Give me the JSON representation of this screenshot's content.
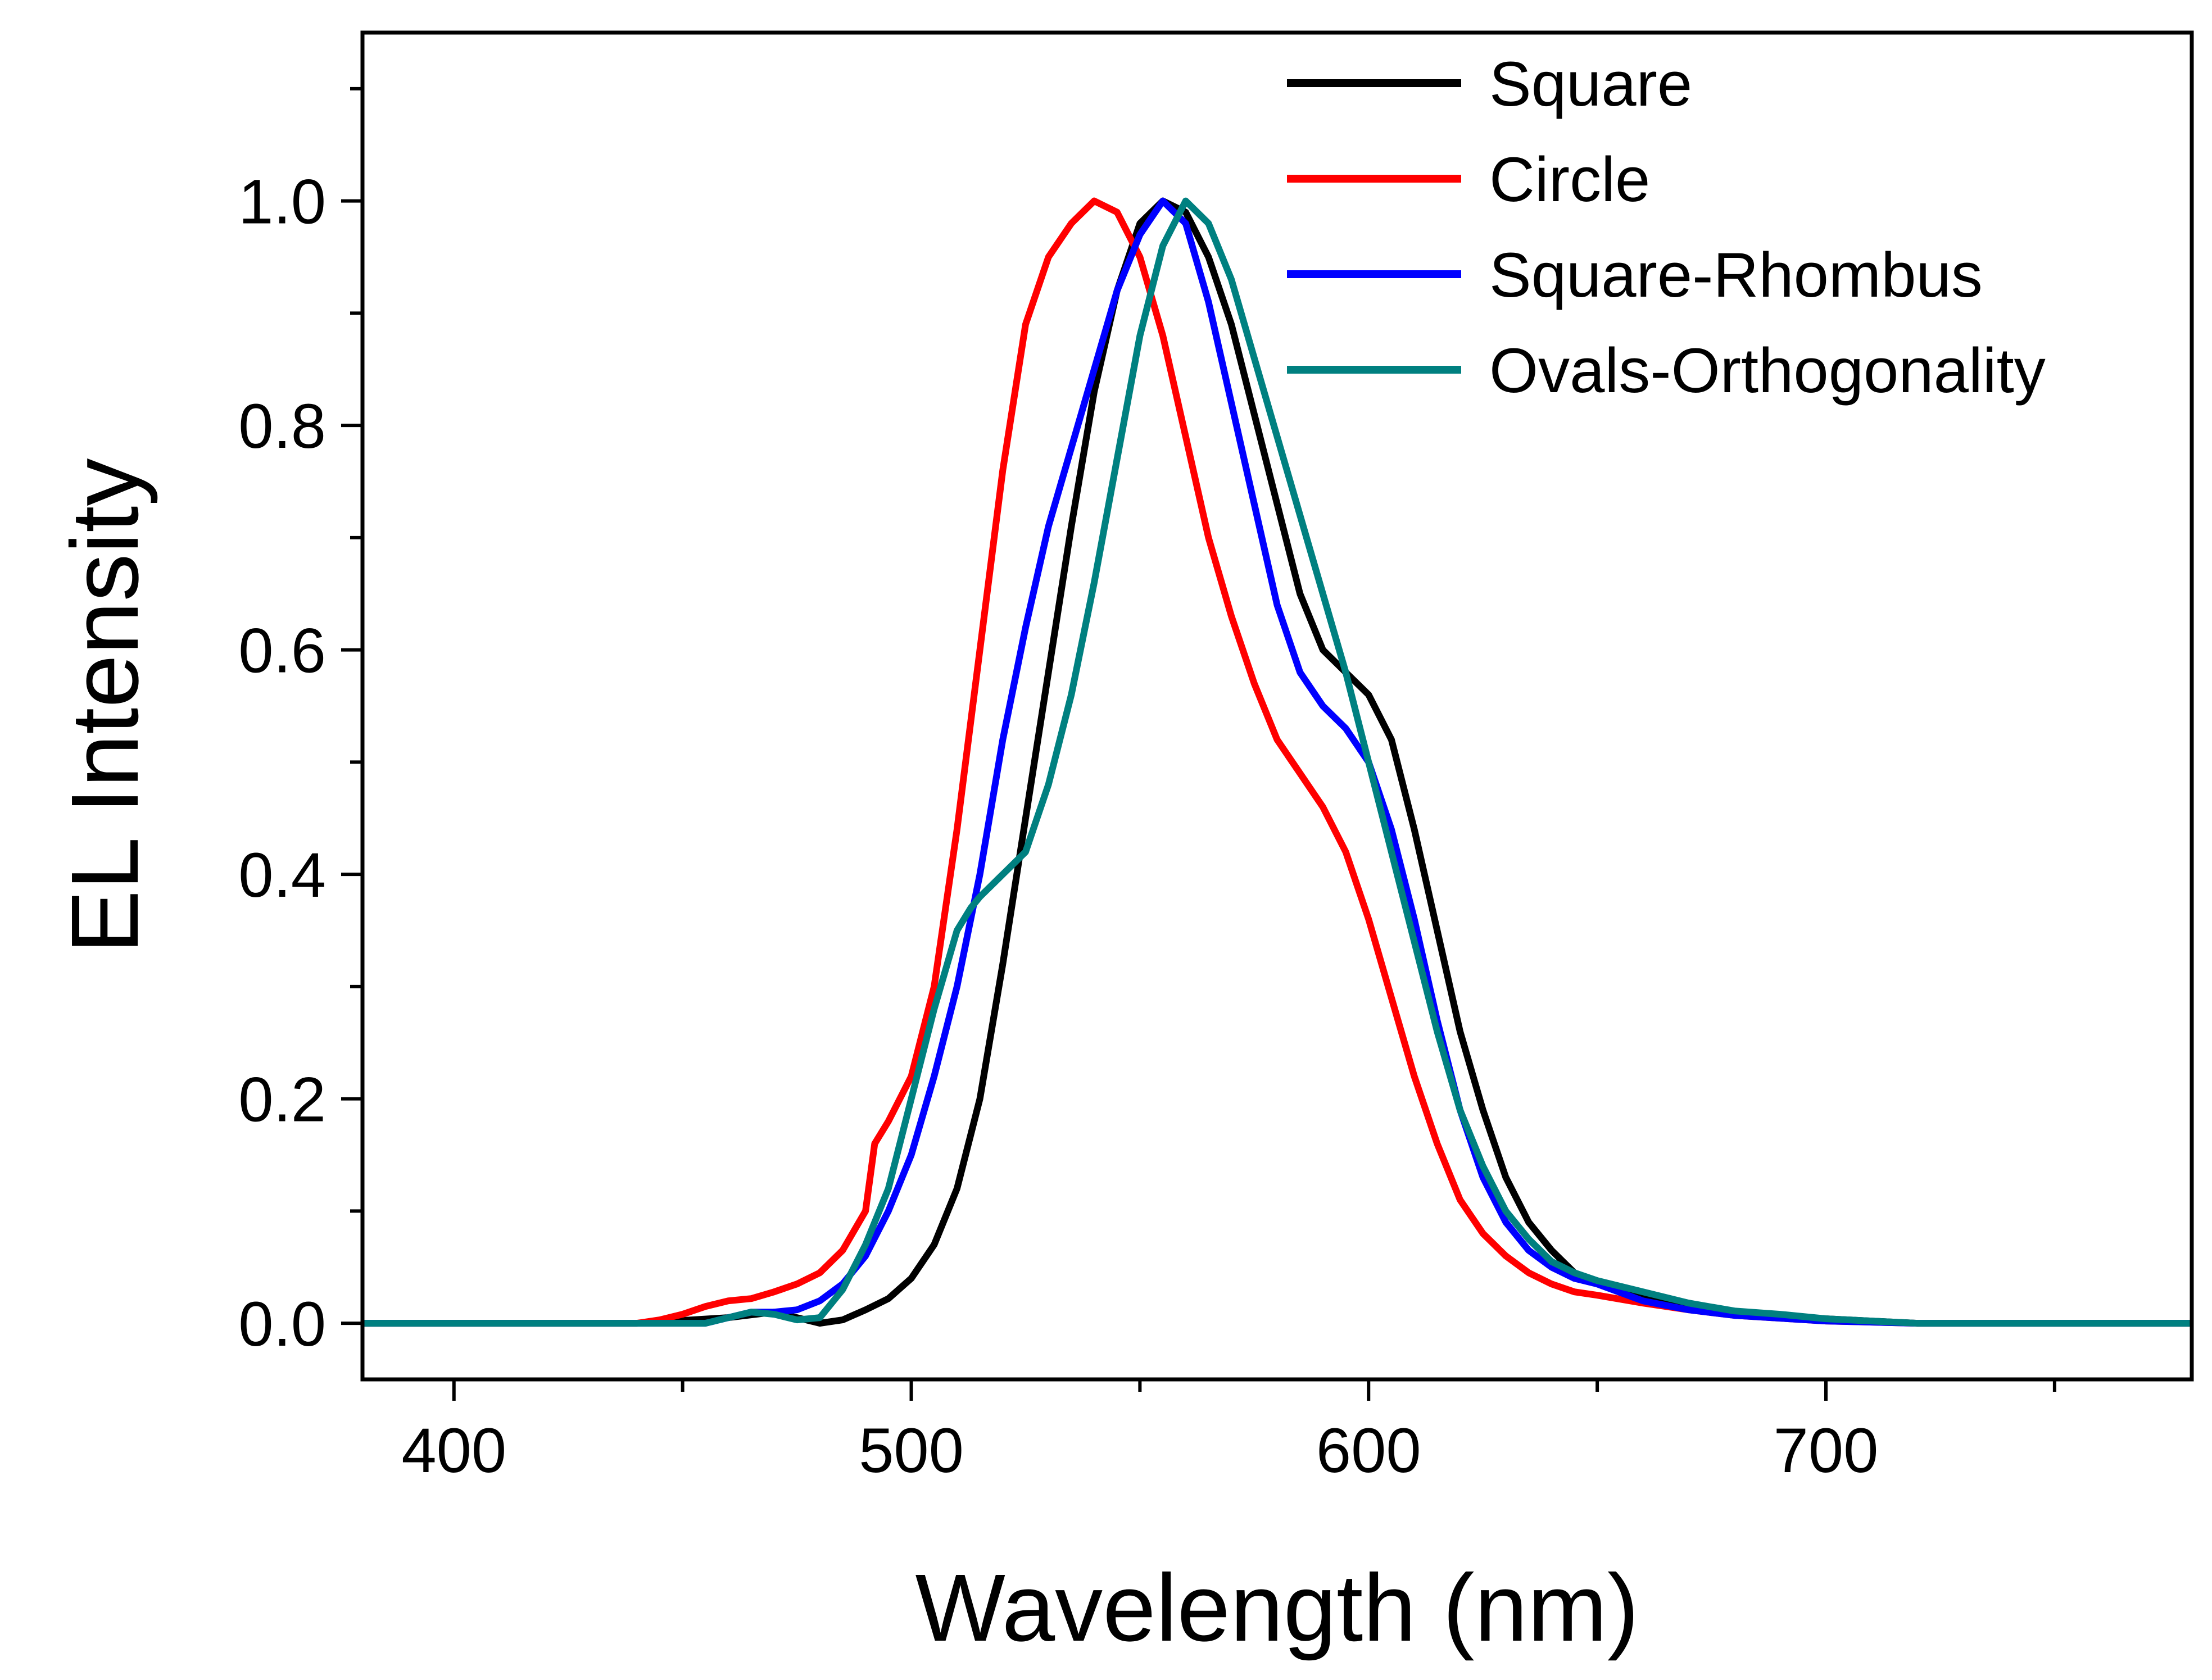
{
  "chart_data": {
    "type": "line",
    "title": "",
    "xlabel": "Wavelength (nm)",
    "ylabel": "EL Intensity",
    "xlim": [
      380,
      780
    ],
    "ylim": [
      -0.05,
      1.15
    ],
    "x_ticks": [
      400,
      500,
      600,
      700
    ],
    "x_tick_labels": [
      "400",
      "500",
      "600",
      "700"
    ],
    "y_ticks": [
      0.0,
      0.2,
      0.4,
      0.6,
      0.8,
      1.0
    ],
    "y_tick_labels": [
      "0.0",
      "0.2",
      "0.4",
      "0.6",
      "0.8",
      "1.0"
    ],
    "grid": false,
    "legend_position": "top-right",
    "series": [
      {
        "name": "Square",
        "color": "#000000",
        "points": [
          [
            380,
            0.0
          ],
          [
            400,
            0.0
          ],
          [
            440,
            0.0
          ],
          [
            460,
            0.005
          ],
          [
            470,
            0.01
          ],
          [
            480,
            0.0
          ],
          [
            485,
            0.003
          ],
          [
            490,
            0.012
          ],
          [
            495,
            0.022
          ],
          [
            500,
            0.04
          ],
          [
            505,
            0.07
          ],
          [
            510,
            0.12
          ],
          [
            515,
            0.2
          ],
          [
            520,
            0.32
          ],
          [
            525,
            0.45
          ],
          [
            530,
            0.58
          ],
          [
            535,
            0.71
          ],
          [
            540,
            0.83
          ],
          [
            545,
            0.92
          ],
          [
            550,
            0.98
          ],
          [
            555,
            1.0
          ],
          [
            560,
            0.99
          ],
          [
            565,
            0.95
          ],
          [
            570,
            0.89
          ],
          [
            575,
            0.81
          ],
          [
            580,
            0.73
          ],
          [
            585,
            0.65
          ],
          [
            590,
            0.6
          ],
          [
            595,
            0.58
          ],
          [
            600,
            0.56
          ],
          [
            605,
            0.52
          ],
          [
            610,
            0.44
          ],
          [
            615,
            0.35
          ],
          [
            620,
            0.26
          ],
          [
            625,
            0.19
          ],
          [
            630,
            0.13
          ],
          [
            635,
            0.09
          ],
          [
            640,
            0.065
          ],
          [
            645,
            0.045
          ],
          [
            650,
            0.035
          ],
          [
            660,
            0.025
          ],
          [
            670,
            0.018
          ],
          [
            680,
            0.01
          ],
          [
            700,
            0.004
          ],
          [
            720,
            0.0
          ],
          [
            750,
            0.0
          ],
          [
            780,
            0.0
          ]
        ]
      },
      {
        "name": "Circle",
        "color": "#ff0000",
        "points": [
          [
            380,
            0.0
          ],
          [
            400,
            0.0
          ],
          [
            440,
            0.0
          ],
          [
            445,
            0.003
          ],
          [
            450,
            0.008
          ],
          [
            455,
            0.015
          ],
          [
            460,
            0.02
          ],
          [
            465,
            0.022
          ],
          [
            470,
            0.028
          ],
          [
            475,
            0.035
          ],
          [
            480,
            0.045
          ],
          [
            485,
            0.065
          ],
          [
            490,
            0.1
          ],
          [
            492,
            0.16
          ],
          [
            495,
            0.18
          ],
          [
            500,
            0.22
          ],
          [
            505,
            0.3
          ],
          [
            510,
            0.44
          ],
          [
            515,
            0.6
          ],
          [
            520,
            0.76
          ],
          [
            525,
            0.89
          ],
          [
            530,
            0.95
          ],
          [
            535,
            0.98
          ],
          [
            540,
            1.0
          ],
          [
            545,
            0.99
          ],
          [
            550,
            0.95
          ],
          [
            555,
            0.88
          ],
          [
            560,
            0.79
          ],
          [
            565,
            0.7
          ],
          [
            570,
            0.63
          ],
          [
            575,
            0.57
          ],
          [
            580,
            0.52
          ],
          [
            585,
            0.49
          ],
          [
            590,
            0.46
          ],
          [
            595,
            0.42
          ],
          [
            600,
            0.36
          ],
          [
            605,
            0.29
          ],
          [
            610,
            0.22
          ],
          [
            615,
            0.16
          ],
          [
            620,
            0.11
          ],
          [
            625,
            0.08
          ],
          [
            630,
            0.06
          ],
          [
            635,
            0.045
          ],
          [
            640,
            0.035
          ],
          [
            645,
            0.028
          ],
          [
            650,
            0.025
          ],
          [
            660,
            0.018
          ],
          [
            670,
            0.012
          ],
          [
            680,
            0.007
          ],
          [
            700,
            0.002
          ],
          [
            720,
            0.0
          ],
          [
            780,
            0.0
          ]
        ]
      },
      {
        "name": "Square-Rhombus",
        "color": "#0000ff",
        "points": [
          [
            380,
            0.0
          ],
          [
            400,
            0.0
          ],
          [
            440,
            0.0
          ],
          [
            455,
            0.0
          ],
          [
            460,
            0.005
          ],
          [
            465,
            0.01
          ],
          [
            470,
            0.01
          ],
          [
            475,
            0.012
          ],
          [
            480,
            0.02
          ],
          [
            485,
            0.035
          ],
          [
            490,
            0.06
          ],
          [
            495,
            0.1
          ],
          [
            500,
            0.15
          ],
          [
            505,
            0.22
          ],
          [
            510,
            0.3
          ],
          [
            515,
            0.4
          ],
          [
            520,
            0.52
          ],
          [
            525,
            0.62
          ],
          [
            530,
            0.71
          ],
          [
            535,
            0.78
          ],
          [
            540,
            0.85
          ],
          [
            545,
            0.92
          ],
          [
            550,
            0.97
          ],
          [
            555,
            1.0
          ],
          [
            560,
            0.98
          ],
          [
            565,
            0.91
          ],
          [
            570,
            0.82
          ],
          [
            575,
            0.73
          ],
          [
            580,
            0.64
          ],
          [
            585,
            0.58
          ],
          [
            590,
            0.55
          ],
          [
            595,
            0.53
          ],
          [
            600,
            0.5
          ],
          [
            605,
            0.44
          ],
          [
            610,
            0.36
          ],
          [
            615,
            0.27
          ],
          [
            620,
            0.19
          ],
          [
            625,
            0.13
          ],
          [
            630,
            0.09
          ],
          [
            635,
            0.065
          ],
          [
            640,
            0.05
          ],
          [
            645,
            0.04
          ],
          [
            650,
            0.035
          ],
          [
            660,
            0.02
          ],
          [
            670,
            0.012
          ],
          [
            680,
            0.007
          ],
          [
            700,
            0.002
          ],
          [
            720,
            0.0
          ],
          [
            780,
            0.0
          ]
        ]
      },
      {
        "name": "Ovals-Orthogonality",
        "color": "#008080",
        "points": [
          [
            380,
            0.0
          ],
          [
            400,
            0.0
          ],
          [
            440,
            0.0
          ],
          [
            455,
            0.0
          ],
          [
            460,
            0.005
          ],
          [
            465,
            0.01
          ],
          [
            470,
            0.008
          ],
          [
            475,
            0.003
          ],
          [
            480,
            0.005
          ],
          [
            485,
            0.03
          ],
          [
            490,
            0.07
          ],
          [
            495,
            0.12
          ],
          [
            500,
            0.2
          ],
          [
            505,
            0.28
          ],
          [
            510,
            0.35
          ],
          [
            513,
            0.37
          ],
          [
            515,
            0.38
          ],
          [
            520,
            0.4
          ],
          [
            525,
            0.42
          ],
          [
            530,
            0.48
          ],
          [
            535,
            0.56
          ],
          [
            540,
            0.66
          ],
          [
            545,
            0.77
          ],
          [
            550,
            0.88
          ],
          [
            555,
            0.96
          ],
          [
            560,
            1.0
          ],
          [
            565,
            0.98
          ],
          [
            570,
            0.93
          ],
          [
            575,
            0.86
          ],
          [
            580,
            0.79
          ],
          [
            585,
            0.72
          ],
          [
            590,
            0.65
          ],
          [
            595,
            0.58
          ],
          [
            600,
            0.5
          ],
          [
            605,
            0.42
          ],
          [
            610,
            0.34
          ],
          [
            615,
            0.26
          ],
          [
            620,
            0.19
          ],
          [
            625,
            0.14
          ],
          [
            630,
            0.1
          ],
          [
            635,
            0.075
          ],
          [
            640,
            0.055
          ],
          [
            645,
            0.045
          ],
          [
            650,
            0.038
          ],
          [
            660,
            0.028
          ],
          [
            670,
            0.018
          ],
          [
            680,
            0.011
          ],
          [
            690,
            0.008
          ],
          [
            700,
            0.004
          ],
          [
            720,
            0.0
          ],
          [
            780,
            0.0
          ]
        ]
      }
    ]
  }
}
